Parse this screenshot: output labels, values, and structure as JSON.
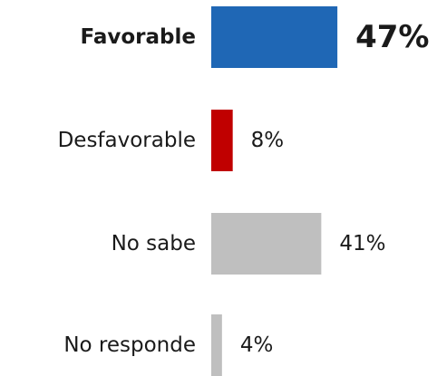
{
  "chart_data": {
    "type": "bar",
    "orientation": "horizontal",
    "categories": [
      "Favorable",
      "Desfavorable",
      "No sabe",
      "No responde"
    ],
    "values": [
      47,
      8,
      41,
      4
    ],
    "value_labels": [
      "47%",
      "8%",
      "41%",
      "4%"
    ],
    "unit": "%",
    "colors": [
      "#1f67b5",
      "#c00000",
      "#bfbfbf",
      "#bfbfbf"
    ],
    "highlight_index": 0,
    "title": "",
    "xlabel": "",
    "ylabel": "",
    "xlim": [
      0,
      50
    ],
    "grid": false,
    "legend": "none"
  }
}
